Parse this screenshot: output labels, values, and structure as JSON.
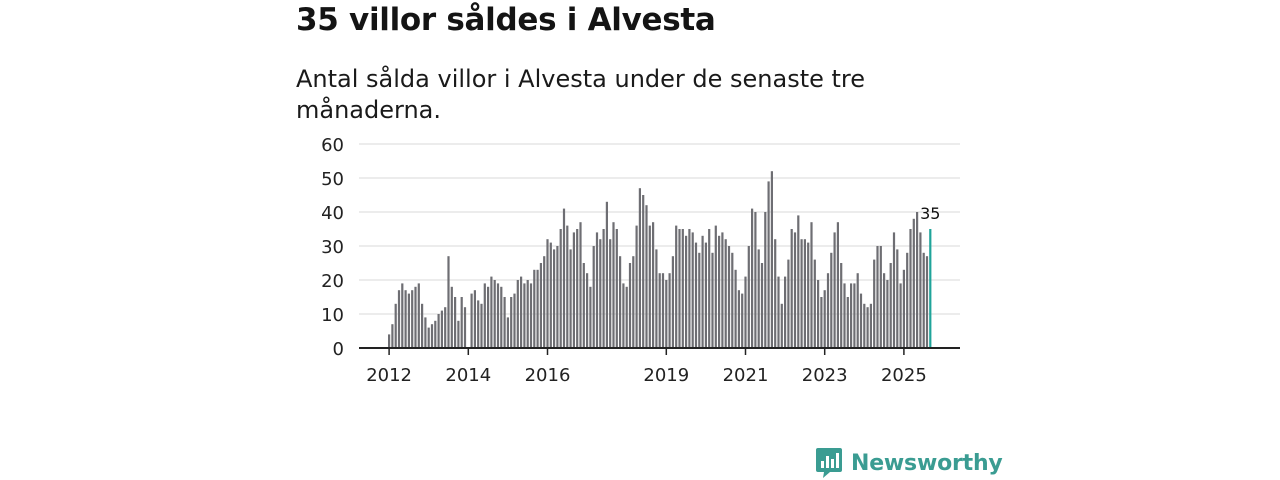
{
  "header": {
    "title": "35 villor såldes i Alvesta",
    "subtitle": "Antal sålda villor i Alvesta under de senaste tre månaderna."
  },
  "brand": {
    "name": "Newsworthy",
    "color": "#3a9c92"
  },
  "colors": {
    "bar": "#6e6e73",
    "highlight": "#1fa49a",
    "grid": "#d9d9d9",
    "axis": "#222222"
  },
  "chart_data": {
    "type": "bar",
    "title": "35 villor såldes i Alvesta",
    "xlabel": "",
    "ylabel": "",
    "ylim": [
      0,
      60
    ],
    "yticks": [
      0,
      10,
      20,
      30,
      40,
      50,
      60
    ],
    "grid": true,
    "x_start": "2012-01",
    "xtick_labels": [
      {
        "label": "2012",
        "index": 0
      },
      {
        "label": "2014",
        "index": 24
      },
      {
        "label": "2016",
        "index": 48
      },
      {
        "label": "2019",
        "index": 84
      },
      {
        "label": "2021",
        "index": 108
      },
      {
        "label": "2023",
        "index": 132
      },
      {
        "label": "2025",
        "index": 156
      }
    ],
    "series": [
      {
        "name": "Antal sålda villor",
        "values": [
          4,
          7,
          13,
          17,
          19,
          17,
          16,
          17,
          18,
          19,
          13,
          9,
          6,
          7,
          8,
          10,
          11,
          12,
          27,
          18,
          15,
          8,
          15,
          12,
          0,
          16,
          17,
          14,
          13,
          19,
          18,
          21,
          20,
          19,
          18,
          15,
          9,
          15,
          16,
          20,
          21,
          19,
          20,
          19,
          23,
          23,
          25,
          27,
          32,
          31,
          29,
          30,
          35,
          41,
          36,
          29,
          34,
          35,
          37,
          25,
          22,
          18,
          30,
          34,
          32,
          35,
          43,
          32,
          37,
          35,
          27,
          19,
          18,
          25,
          27,
          36,
          47,
          45,
          42,
          36,
          37,
          29,
          22,
          22,
          20,
          22,
          27,
          36,
          35,
          35,
          33,
          35,
          34,
          31,
          28,
          33,
          31,
          35,
          28,
          36,
          33,
          34,
          32,
          30,
          28,
          23,
          17,
          16,
          21,
          30,
          41,
          40,
          29,
          25,
          40,
          49,
          52,
          32,
          21,
          13,
          21,
          26,
          35,
          34,
          39,
          32,
          32,
          31,
          37,
          26,
          20,
          15,
          17,
          22,
          28,
          34,
          37,
          25,
          19,
          15,
          19,
          19,
          22,
          16,
          13,
          12,
          13,
          26,
          30,
          30,
          22,
          20,
          25,
          34,
          29,
          19,
          23,
          28,
          35,
          38,
          40,
          34,
          28,
          27,
          35
        ]
      }
    ],
    "highlight_label": "35"
  }
}
